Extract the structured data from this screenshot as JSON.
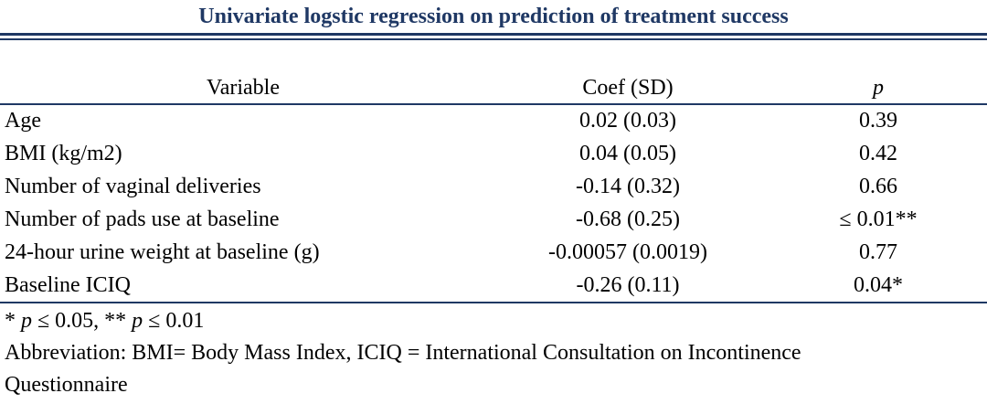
{
  "title": "Univariate logstic regression on prediction of treatment success",
  "colors": {
    "rule": "#1f3864",
    "title": "#1f3864"
  },
  "table": {
    "headers": {
      "variable": "Variable",
      "coef": "Coef (SD)",
      "p": "p"
    },
    "rows": [
      {
        "variable": "Age",
        "coef": "0.02 (0.03)",
        "p": "0.39"
      },
      {
        "variable": "BMI (kg/m2)",
        "coef": "0.04 (0.05)",
        "p": "0.42"
      },
      {
        "variable": "Number of vaginal deliveries",
        "coef": "-0.14 (0.32)",
        "p": "0.66"
      },
      {
        "variable": "Number of pads use at baseline",
        "coef": "-0.68 (0.25)",
        "p": "≤ 0.01**"
      },
      {
        "variable": "24-hour urine weight at baseline (g)",
        "coef": "-0.00057 (0.0019)",
        "p": "0.77"
      },
      {
        "variable": "Baseline ICIQ",
        "coef": "-0.26 (0.11)",
        "p": "0.04*"
      }
    ]
  },
  "footnotes": {
    "significance": {
      "star1": "* ",
      "p1": "p",
      "t1": " ≤ 0.05, ** ",
      "p2": "p",
      "t2": " ≤ 0.01"
    },
    "abbreviation_line1": "Abbreviation: BMI= Body Mass Index, ICIQ = International Consultation on Incontinence",
    "abbreviation_line2": "Questionnaire"
  }
}
